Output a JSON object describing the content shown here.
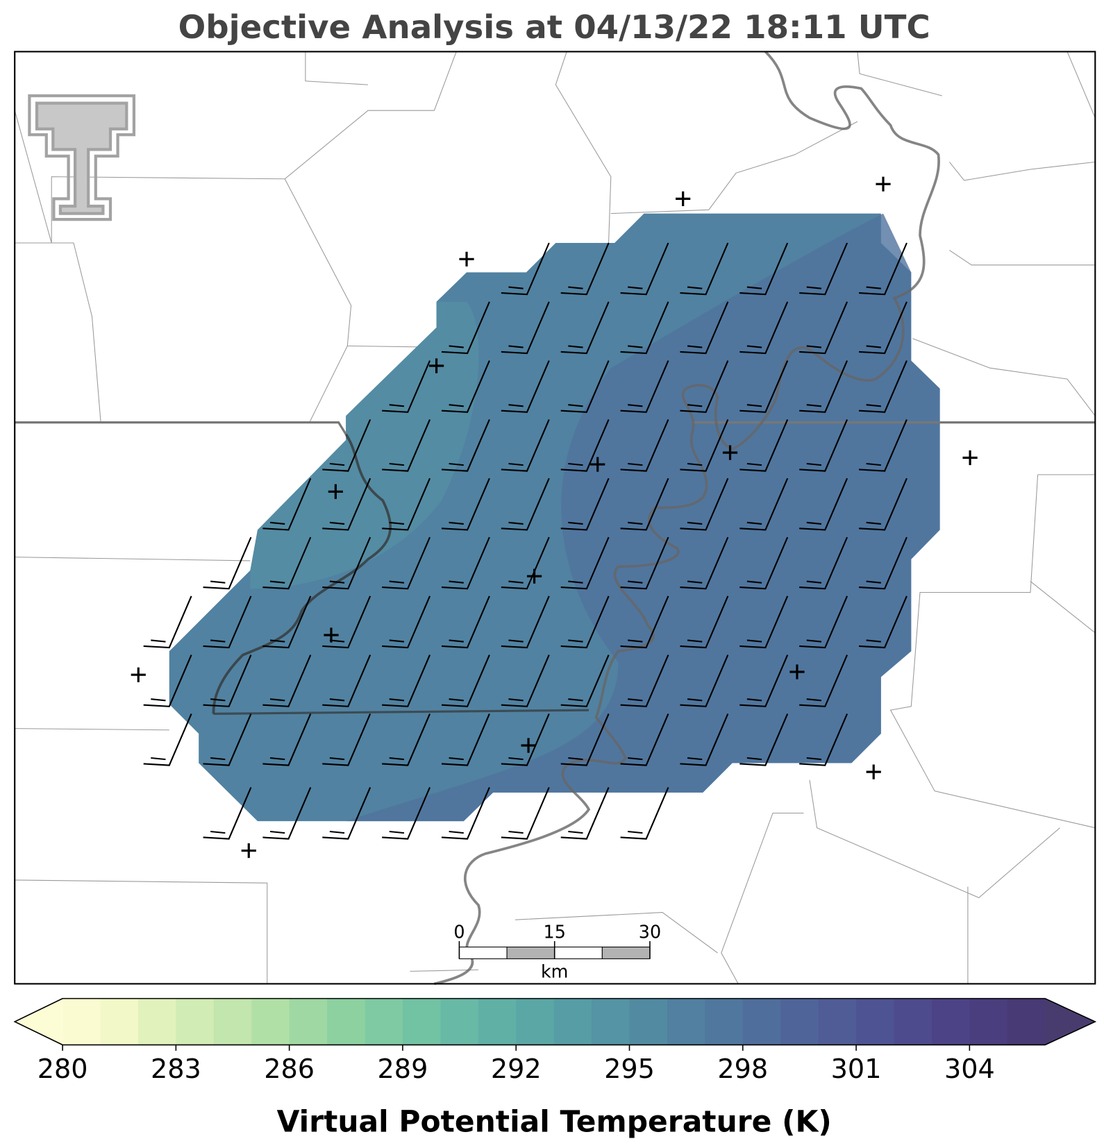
{
  "chart_data": {
    "type": "map",
    "title": "Objective Analysis at 04/13/22 18:11 UTC",
    "colorbar": {
      "label": "Virtual Potential Temperature (K)",
      "range": [
        280,
        306
      ],
      "ticks": [
        280,
        283,
        286,
        289,
        292,
        295,
        298,
        301,
        304
      ],
      "colors": [
        "#fbfbd1",
        "#f2f8c7",
        "#e1f2bd",
        "#d1ecb4",
        "#c2e6ad",
        "#b1e0a6",
        "#9fd8a2",
        "#8dd1a0",
        "#7fcaa2",
        "#72c2a4",
        "#68baa6",
        "#61b0a6",
        "#5ba7a6",
        "#579da5",
        "#5494a4",
        "#528aa2",
        "#5180a0",
        "#50779e",
        "#4f6e9c",
        "#4f6599",
        "#4f5c96",
        "#4e5393",
        "#4e4a8e",
        "#4c4387",
        "#4a3e7e",
        "#483a75"
      ],
      "under_color": "#fdfdd5",
      "over_color": "#483c6e"
    },
    "scale_bar": {
      "range": [
        0,
        30
      ],
      "ticks": [
        0,
        15,
        30
      ],
      "unit": "km"
    }
  }
}
